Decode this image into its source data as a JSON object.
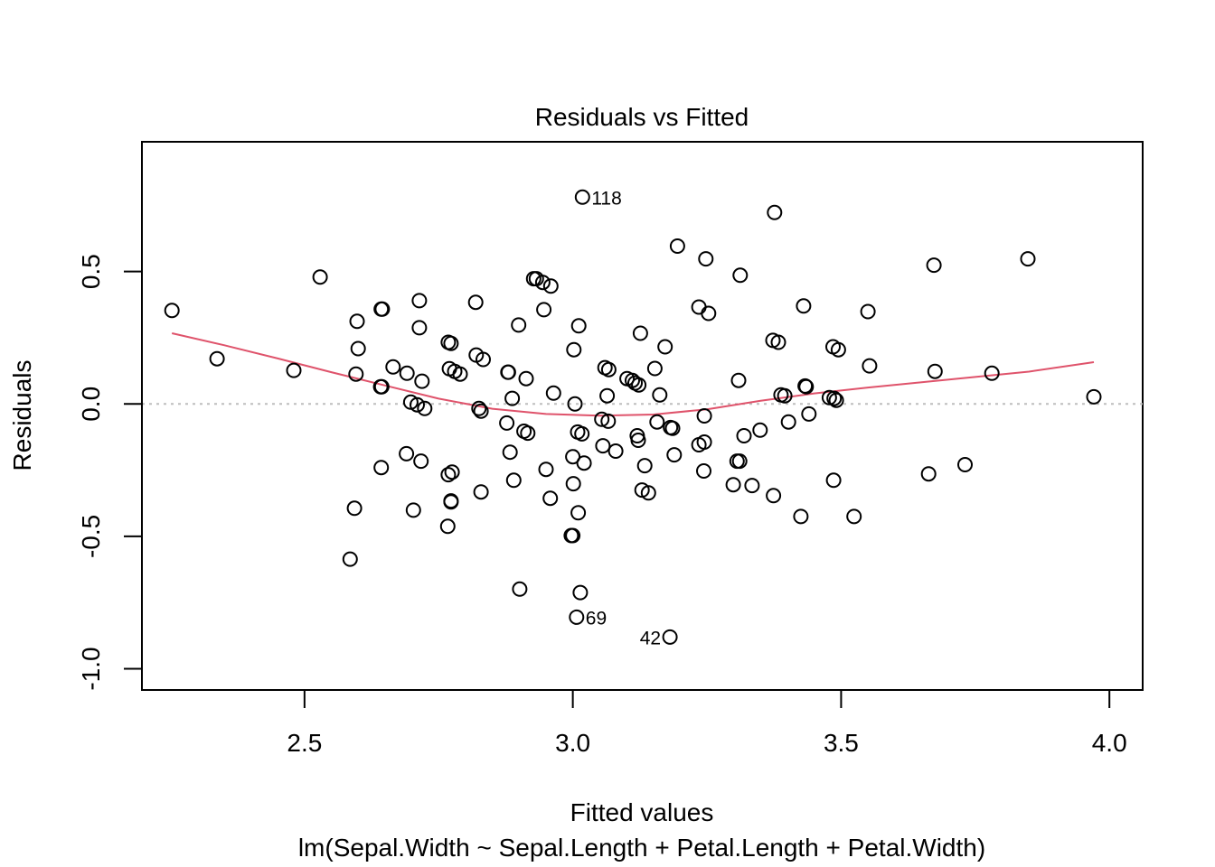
{
  "chart_data": {
    "type": "scatter",
    "title": "Residuals vs Fitted",
    "xlabel": "Fitted values",
    "ylabel": "Residuals",
    "subtitle": "lm(Sepal.Width ~ Sepal.Length + Petal.Length + Petal.Width)",
    "xlim": [
      2.197,
      4.062
    ],
    "ylim": [
      -1.08,
      0.99
    ],
    "x_ticks": [
      2.5,
      3.0,
      3.5,
      4.0
    ],
    "x_tick_labels": [
      "2.5",
      "3.0",
      "3.5",
      "4.0"
    ],
    "y_ticks": [
      0.5,
      0.0,
      -0.5,
      -1.0
    ],
    "y_tick_labels": [
      "0.5",
      "0.0",
      "-0.5",
      "-1.0"
    ],
    "reference_line": 0.0,
    "points": [
      [
        2.253,
        0.353
      ],
      [
        2.337,
        0.171
      ],
      [
        2.48,
        0.127
      ],
      [
        2.529,
        0.479
      ],
      [
        2.598,
        0.312
      ],
      [
        2.6,
        0.209
      ],
      [
        2.596,
        0.113
      ],
      [
        2.642,
        0.065
      ],
      [
        2.644,
        0.065
      ],
      [
        2.643,
        0.358
      ],
      [
        2.645,
        0.358
      ],
      [
        2.665,
        0.14
      ],
      [
        2.691,
        0.116
      ],
      [
        2.698,
        0.007
      ],
      [
        2.71,
        -0.003
      ],
      [
        2.714,
        0.39
      ],
      [
        2.714,
        0.288
      ],
      [
        2.719,
        0.086
      ],
      [
        2.724,
        -0.017
      ],
      [
        2.768,
        0.233
      ],
      [
        2.773,
        0.229
      ],
      [
        2.77,
        0.133
      ],
      [
        2.78,
        0.123
      ],
      [
        2.79,
        0.113
      ],
      [
        2.819,
        0.384
      ],
      [
        2.82,
        0.185
      ],
      [
        2.825,
        -0.017
      ],
      [
        2.833,
        0.168
      ],
      [
        2.829,
        -0.027
      ],
      [
        2.879,
        0.12
      ],
      [
        2.88,
        0.12
      ],
      [
        2.887,
        0.021
      ],
      [
        2.877,
        -0.072
      ],
      [
        2.899,
        0.298
      ],
      [
        2.913,
        0.096
      ],
      [
        2.909,
        -0.103
      ],
      [
        2.916,
        -0.11
      ],
      [
        2.927,
        0.473
      ],
      [
        2.932,
        0.473
      ],
      [
        2.944,
        0.459
      ],
      [
        2.959,
        0.445
      ],
      [
        2.946,
        0.356
      ],
      [
        2.964,
        0.041
      ],
      [
        3.002,
        0.205
      ],
      [
        3.004,
        0.0
      ],
      [
        3.011,
        0.295
      ],
      [
        3.009,
        -0.106
      ],
      [
        3.017,
        -0.113
      ],
      [
        3.06,
        0.137
      ],
      [
        3.067,
        0.13
      ],
      [
        3.064,
        0.031
      ],
      [
        3.054,
        -0.058
      ],
      [
        3.066,
        -0.065
      ],
      [
        3.101,
        0.096
      ],
      [
        3.111,
        0.089
      ],
      [
        3.116,
        0.079
      ],
      [
        3.123,
        0.072
      ],
      [
        3.126,
        0.267
      ],
      [
        3.162,
        0.034
      ],
      [
        3.172,
        0.216
      ],
      [
        3.153,
        0.134
      ],
      [
        3.157,
        -0.068
      ],
      [
        3.182,
        -0.089
      ],
      [
        3.186,
        -0.092
      ],
      [
        3.195,
        0.596
      ],
      [
        3.235,
        0.366
      ],
      [
        3.248,
        0.548
      ],
      [
        3.253,
        0.342
      ],
      [
        3.245,
        -0.045
      ],
      [
        3.312,
        0.486
      ],
      [
        3.309,
        0.089
      ],
      [
        3.311,
        -0.216
      ],
      [
        3.319,
        -0.12
      ],
      [
        3.349,
        -0.099
      ],
      [
        3.373,
        0.24
      ],
      [
        3.383,
        0.233
      ],
      [
        3.388,
        0.034
      ],
      [
        3.395,
        0.031
      ],
      [
        3.402,
        -0.068
      ],
      [
        3.43,
        0.37
      ],
      [
        3.433,
        0.068
      ],
      [
        3.435,
        0.065
      ],
      [
        3.44,
        -0.038
      ],
      [
        3.478,
        0.024
      ],
      [
        3.485,
        0.216
      ],
      [
        3.495,
        0.205
      ],
      [
        3.487,
        0.021
      ],
      [
        3.491,
        0.014
      ],
      [
        3.55,
        0.349
      ],
      [
        3.553,
        0.144
      ],
      [
        3.673,
        0.524
      ],
      [
        3.675,
        0.123
      ],
      [
        3.848,
        0.548
      ],
      [
        3.781,
        0.116
      ],
      [
        3.971,
        0.027
      ],
      [
        3.663,
        -0.264
      ],
      [
        3.731,
        -0.229
      ],
      [
        3.524,
        -0.425
      ],
      [
        3.425,
        -0.425
      ],
      [
        3.486,
        -0.288
      ],
      [
        3.374,
        -0.346
      ],
      [
        3.334,
        -0.308
      ],
      [
        3.299,
        -0.305
      ],
      [
        3.306,
        -0.216
      ],
      [
        3.245,
        -0.144
      ],
      [
        3.244,
        -0.253
      ],
      [
        3.235,
        -0.154
      ],
      [
        3.189,
        -0.192
      ],
      [
        3.134,
        -0.233
      ],
      [
        3.129,
        -0.325
      ],
      [
        3.141,
        -0.336
      ],
      [
        3.122,
        -0.137
      ],
      [
        3.12,
        -0.12
      ],
      [
        3.08,
        -0.178
      ],
      [
        3.056,
        -0.158
      ],
      [
        3.021,
        -0.223
      ],
      [
        3.0,
        -0.199
      ],
      [
        3.001,
        -0.301
      ],
      [
        3.01,
        -0.411
      ],
      [
        2.997,
        -0.497
      ],
      [
        3.0,
        -0.497
      ],
      [
        2.958,
        -0.356
      ],
      [
        2.95,
        -0.247
      ],
      [
        2.89,
        -0.288
      ],
      [
        2.883,
        -0.182
      ],
      [
        2.829,
        -0.332
      ],
      [
        2.773,
        -0.366
      ],
      [
        2.773,
        -0.37
      ],
      [
        2.768,
        -0.267
      ],
      [
        2.767,
        -0.462
      ],
      [
        2.775,
        -0.257
      ],
      [
        2.717,
        -0.216
      ],
      [
        2.69,
        -0.188
      ],
      [
        2.703,
        -0.401
      ],
      [
        2.643,
        -0.24
      ],
      [
        2.593,
        -0.394
      ],
      [
        2.585,
        -0.586
      ],
      [
        2.901,
        -0.699
      ],
      [
        3.014,
        -0.712
      ],
      [
        3.007,
        -0.805
      ],
      [
        3.181,
        -0.88
      ],
      [
        3.018,
        0.781
      ],
      [
        3.376,
        0.723
      ]
    ],
    "lowess": [
      [
        2.253,
        0.267
      ],
      [
        2.35,
        0.222
      ],
      [
        2.45,
        0.172
      ],
      [
        2.55,
        0.12
      ],
      [
        2.65,
        0.07
      ],
      [
        2.75,
        0.02
      ],
      [
        2.85,
        -0.018
      ],
      [
        2.95,
        -0.038
      ],
      [
        3.05,
        -0.044
      ],
      [
        3.15,
        -0.04
      ],
      [
        3.25,
        -0.02
      ],
      [
        3.35,
        0.012
      ],
      [
        3.45,
        0.04
      ],
      [
        3.55,
        0.062
      ],
      [
        3.65,
        0.082
      ],
      [
        3.75,
        0.102
      ],
      [
        3.85,
        0.122
      ],
      [
        3.971,
        0.158
      ]
    ],
    "labeled_points": [
      {
        "label": "118",
        "x": 3.018,
        "y": 0.781,
        "side": "right"
      },
      {
        "label": "69",
        "x": 3.007,
        "y": -0.805,
        "side": "right"
      },
      {
        "label": "42",
        "x": 3.181,
        "y": -0.88,
        "side": "left"
      }
    ],
    "colors": {
      "points": "#000000",
      "lowess": "#DF536B",
      "reference": "#BEBEBE",
      "axis": "#000000"
    }
  }
}
